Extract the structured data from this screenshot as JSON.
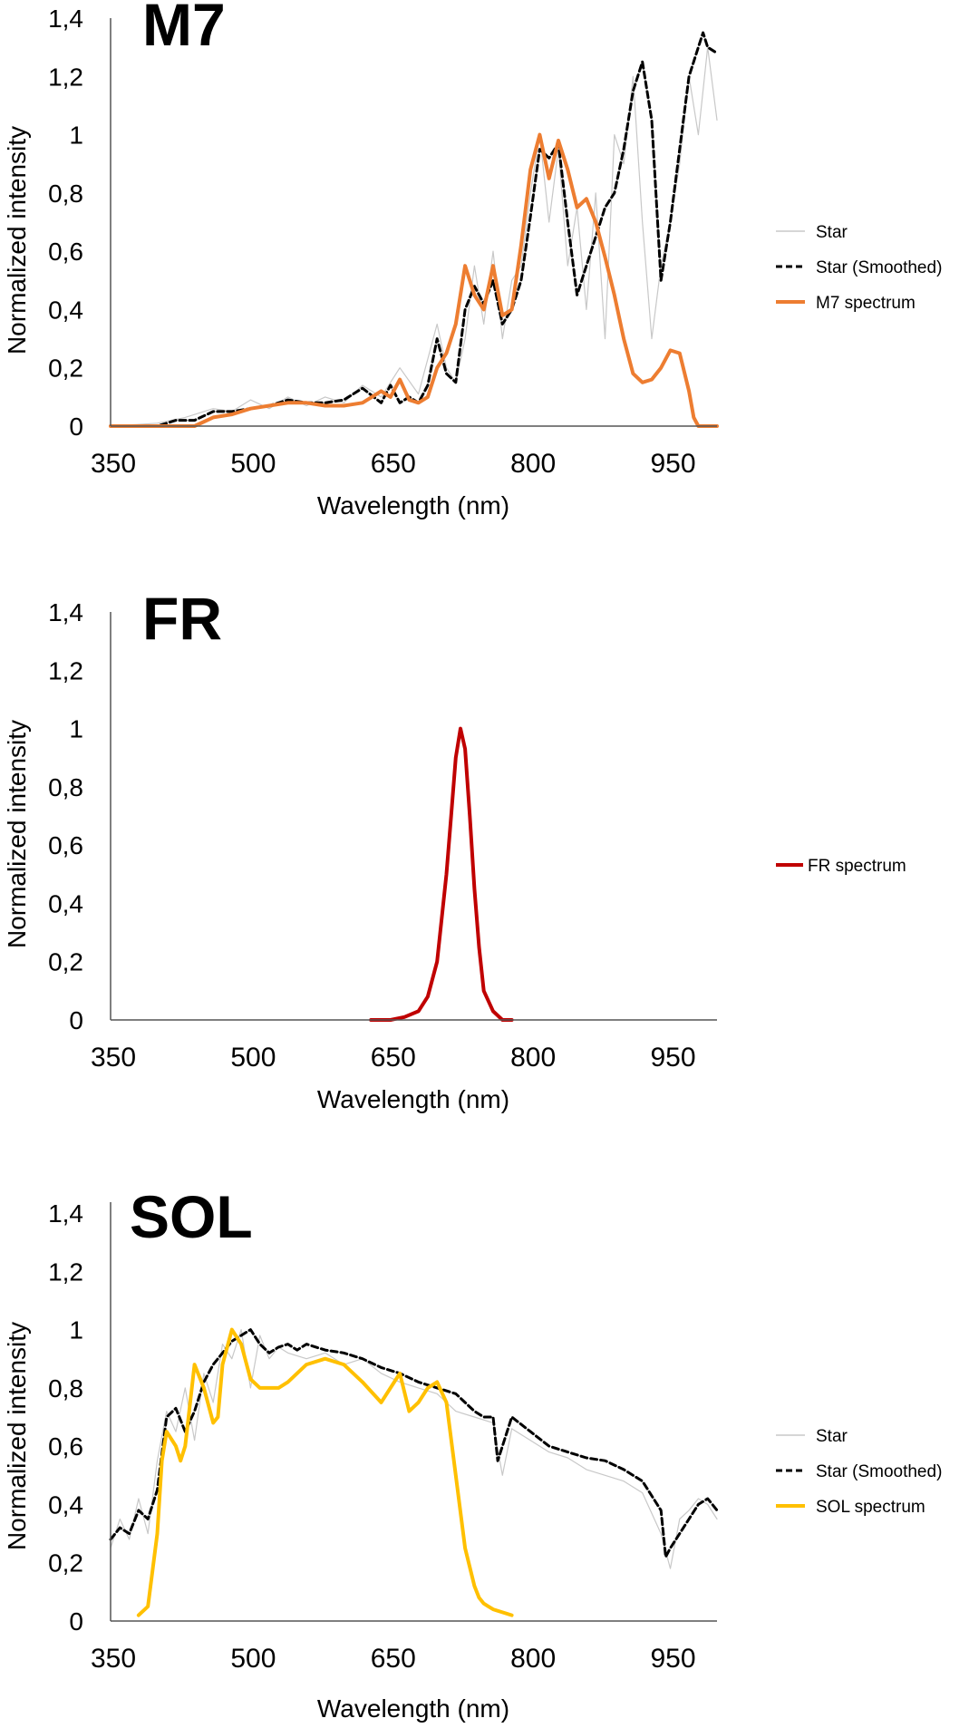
{
  "chart_data": [
    {
      "type": "line",
      "title": "M7",
      "xlabel": "Wavelength (nm)",
      "ylabel": "Normalized intensity",
      "xlim": [
        350,
        1000
      ],
      "ylim": [
        0,
        1.4
      ],
      "xticks": [
        "350",
        "500",
        "650",
        "800",
        "950"
      ],
      "yticks": [
        "0",
        "0,2",
        "0,4",
        "0,6",
        "0,8",
        "1",
        "1,2",
        "1,4"
      ],
      "legend_position": "right",
      "legend": [
        "Star",
        "Star (Smoothed)",
        "M7 spectrum"
      ],
      "series": [
        {
          "name": "Star",
          "style": "thin",
          "color": "#c8c8c8",
          "x": [
            350,
            400,
            430,
            460,
            480,
            500,
            520,
            540,
            560,
            580,
            600,
            620,
            640,
            660,
            680,
            700,
            710,
            720,
            730,
            740,
            750,
            760,
            770,
            780,
            790,
            800,
            810,
            820,
            830,
            840,
            850,
            860,
            870,
            880,
            890,
            900,
            910,
            920,
            930,
            940,
            950,
            960,
            970,
            980,
            990,
            1000
          ],
          "y": [
            0,
            0.01,
            0.03,
            0.06,
            0.05,
            0.09,
            0.06,
            0.1,
            0.07,
            0.1,
            0.08,
            0.14,
            0.1,
            0.2,
            0.11,
            0.35,
            0.2,
            0.15,
            0.3,
            0.55,
            0.35,
            0.6,
            0.3,
            0.5,
            0.55,
            0.8,
            1.0,
            0.7,
            0.95,
            0.55,
            0.75,
            0.4,
            0.8,
            0.3,
            1.0,
            0.9,
            1.2,
            0.7,
            0.3,
            0.55,
            0.7,
            0.9,
            1.2,
            1.0,
            1.3,
            1.05
          ]
        },
        {
          "name": "Star (Smoothed)",
          "style": "dashed",
          "color": "#000000",
          "x": [
            350,
            400,
            420,
            440,
            460,
            480,
            500,
            520,
            540,
            560,
            580,
            600,
            620,
            640,
            650,
            660,
            670,
            680,
            690,
            700,
            710,
            720,
            730,
            740,
            750,
            760,
            770,
            780,
            790,
            800,
            810,
            820,
            830,
            840,
            850,
            860,
            870,
            880,
            890,
            900,
            910,
            920,
            930,
            940,
            950,
            960,
            970,
            980,
            985,
            990,
            1000
          ],
          "y": [
            0,
            0.0,
            0.02,
            0.02,
            0.05,
            0.05,
            0.06,
            0.07,
            0.09,
            0.08,
            0.08,
            0.09,
            0.13,
            0.08,
            0.14,
            0.08,
            0.1,
            0.08,
            0.14,
            0.3,
            0.18,
            0.15,
            0.4,
            0.48,
            0.42,
            0.5,
            0.35,
            0.4,
            0.5,
            0.72,
            0.95,
            0.92,
            0.97,
            0.7,
            0.45,
            0.55,
            0.65,
            0.75,
            0.8,
            0.95,
            1.15,
            1.25,
            1.05,
            0.5,
            0.7,
            0.95,
            1.2,
            1.3,
            1.35,
            1.3,
            1.28
          ]
        },
        {
          "name": "M7 spectrum",
          "style": "thick",
          "color": "#ED7D31",
          "x": [
            350,
            400,
            420,
            440,
            460,
            480,
            500,
            520,
            540,
            560,
            580,
            600,
            620,
            630,
            640,
            650,
            660,
            670,
            680,
            690,
            700,
            710,
            720,
            730,
            740,
            750,
            760,
            770,
            780,
            790,
            800,
            810,
            820,
            830,
            840,
            850,
            860,
            870,
            880,
            890,
            900,
            910,
            920,
            930,
            940,
            950,
            960,
            970,
            975,
            980,
            1000
          ],
          "y": [
            0,
            0.0,
            0.0,
            0.0,
            0.03,
            0.04,
            0.06,
            0.07,
            0.08,
            0.08,
            0.07,
            0.07,
            0.08,
            0.1,
            0.12,
            0.1,
            0.16,
            0.09,
            0.08,
            0.1,
            0.2,
            0.25,
            0.35,
            0.55,
            0.45,
            0.4,
            0.55,
            0.38,
            0.4,
            0.62,
            0.88,
            1.0,
            0.85,
            0.98,
            0.88,
            0.75,
            0.78,
            0.7,
            0.58,
            0.45,
            0.3,
            0.18,
            0.15,
            0.16,
            0.2,
            0.26,
            0.25,
            0.12,
            0.03,
            0.0,
            0.0
          ]
        }
      ]
    },
    {
      "type": "line",
      "title": "FR",
      "xlabel": "Wavelength (nm)",
      "ylabel": "Normalized intensity",
      "xlim": [
        350,
        1000
      ],
      "ylim": [
        0,
        1.4
      ],
      "xticks": [
        "350",
        "500",
        "650",
        "800",
        "950"
      ],
      "yticks": [
        "0",
        "0,2",
        "0,4",
        "0,6",
        "0,8",
        "1",
        "1,2",
        "1,4"
      ],
      "legend_position": "right",
      "legend": [
        "FR spectrum"
      ],
      "series": [
        {
          "name": "FR spectrum",
          "style": "thick",
          "color": "#C00000",
          "x": [
            629,
            650,
            665,
            680,
            690,
            700,
            710,
            715,
            720,
            725,
            730,
            735,
            740,
            745,
            750,
            760,
            770,
            780
          ],
          "y": [
            0,
            0.0,
            0.01,
            0.03,
            0.08,
            0.2,
            0.5,
            0.7,
            0.9,
            1.0,
            0.93,
            0.7,
            0.45,
            0.25,
            0.1,
            0.03,
            0.0,
            0.0
          ]
        }
      ]
    },
    {
      "type": "line",
      "title": "SOL",
      "xlabel": "Wavelength (nm)",
      "ylabel": "Normalized intensity",
      "xlim": [
        350,
        1000
      ],
      "ylim": [
        0,
        1.4
      ],
      "xticks": [
        "350",
        "500",
        "650",
        "800",
        "950"
      ],
      "yticks": [
        "0",
        "0,2",
        "0,4",
        "0,6",
        "0,8",
        "1",
        "1,2",
        "1,4"
      ],
      "legend_position": "right",
      "legend": [
        "Star",
        "Star (Smoothed)",
        "SOL spectrum"
      ],
      "series": [
        {
          "name": "Star",
          "style": "thin",
          "color": "#c8c8c8",
          "x": [
            350,
            360,
            370,
            380,
            390,
            400,
            410,
            420,
            430,
            440,
            450,
            460,
            470,
            480,
            490,
            500,
            510,
            520,
            530,
            540,
            560,
            580,
            600,
            620,
            640,
            660,
            680,
            700,
            720,
            740,
            760,
            770,
            780,
            800,
            820,
            840,
            860,
            880,
            900,
            920,
            940,
            950,
            960,
            970,
            980,
            990,
            1000
          ],
          "y": [
            0.25,
            0.35,
            0.28,
            0.42,
            0.3,
            0.55,
            0.72,
            0.65,
            0.8,
            0.62,
            0.85,
            0.75,
            0.95,
            0.9,
            1.0,
            0.8,
            0.98,
            0.9,
            0.94,
            0.92,
            0.9,
            0.92,
            0.88,
            0.9,
            0.85,
            0.82,
            0.8,
            0.78,
            0.72,
            0.7,
            0.68,
            0.5,
            0.66,
            0.62,
            0.58,
            0.56,
            0.52,
            0.5,
            0.48,
            0.44,
            0.3,
            0.18,
            0.35,
            0.38,
            0.42,
            0.4,
            0.35
          ]
        },
        {
          "name": "Star (Smoothed)",
          "style": "dashed",
          "color": "#000000",
          "x": [
            350,
            360,
            370,
            380,
            390,
            400,
            410,
            420,
            430,
            440,
            450,
            460,
            470,
            480,
            490,
            500,
            510,
            520,
            530,
            540,
            550,
            560,
            580,
            600,
            620,
            640,
            660,
            680,
            700,
            720,
            740,
            750,
            760,
            765,
            770,
            780,
            800,
            820,
            840,
            860,
            880,
            900,
            920,
            940,
            945,
            950,
            960,
            970,
            980,
            990,
            1000
          ],
          "y": [
            0.28,
            0.32,
            0.3,
            0.38,
            0.35,
            0.45,
            0.7,
            0.73,
            0.65,
            0.72,
            0.82,
            0.88,
            0.92,
            0.96,
            0.98,
            1.0,
            0.95,
            0.92,
            0.94,
            0.95,
            0.93,
            0.95,
            0.93,
            0.92,
            0.9,
            0.87,
            0.85,
            0.82,
            0.8,
            0.78,
            0.72,
            0.7,
            0.7,
            0.55,
            0.6,
            0.7,
            0.65,
            0.6,
            0.58,
            0.56,
            0.55,
            0.52,
            0.48,
            0.38,
            0.22,
            0.25,
            0.3,
            0.35,
            0.4,
            0.42,
            0.38
          ]
        },
        {
          "name": "SOL spectrum",
          "style": "thick",
          "color": "#FFC000",
          "x": [
            380,
            390,
            400,
            405,
            410,
            420,
            425,
            430,
            440,
            450,
            460,
            465,
            470,
            480,
            490,
            500,
            510,
            520,
            530,
            540,
            560,
            580,
            600,
            620,
            640,
            660,
            670,
            680,
            690,
            700,
            710,
            720,
            730,
            740,
            745,
            750,
            755,
            760,
            770,
            780
          ],
          "y": [
            0.02,
            0.05,
            0.3,
            0.55,
            0.65,
            0.6,
            0.55,
            0.6,
            0.88,
            0.8,
            0.68,
            0.7,
            0.88,
            1.0,
            0.95,
            0.83,
            0.8,
            0.8,
            0.8,
            0.82,
            0.88,
            0.9,
            0.88,
            0.82,
            0.75,
            0.85,
            0.72,
            0.75,
            0.8,
            0.82,
            0.75,
            0.5,
            0.25,
            0.12,
            0.08,
            0.06,
            0.05,
            0.04,
            0.03,
            0.02
          ]
        }
      ]
    }
  ]
}
